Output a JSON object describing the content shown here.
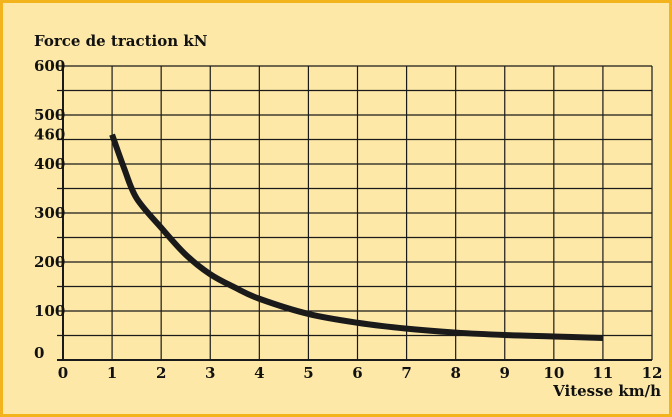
{
  "chart_data": {
    "type": "line",
    "title": "",
    "ylabel": "Force de traction kN",
    "xlabel": "Vitesse km/h",
    "xlim": [
      0,
      12
    ],
    "ylim": [
      0,
      600
    ],
    "grid": true,
    "x_ticks": [
      "0",
      "1",
      "2",
      "3",
      "4",
      "5",
      "6",
      "7",
      "8",
      "9",
      "10",
      "11",
      "12"
    ],
    "y_ticks": [
      "0",
      "100",
      "200",
      "300",
      "400",
      "460",
      "500",
      "600"
    ],
    "series": [
      {
        "x": [
          1.0,
          1.25,
          1.5,
          2.0,
          2.5,
          3.0,
          3.5,
          4.0,
          5.0,
          6.0,
          7.0,
          8.0,
          9.0,
          10.0,
          11.0
        ],
        "y": [
          460,
          390,
          330,
          270,
          215,
          175,
          148,
          125,
          94,
          76,
          64,
          56,
          51,
          48,
          45
        ]
      }
    ],
    "colors": {
      "background": "#fde8a7",
      "border": "#f2b31c",
      "grid": "#1a1a1a",
      "line": "#1a1a1a"
    }
  }
}
